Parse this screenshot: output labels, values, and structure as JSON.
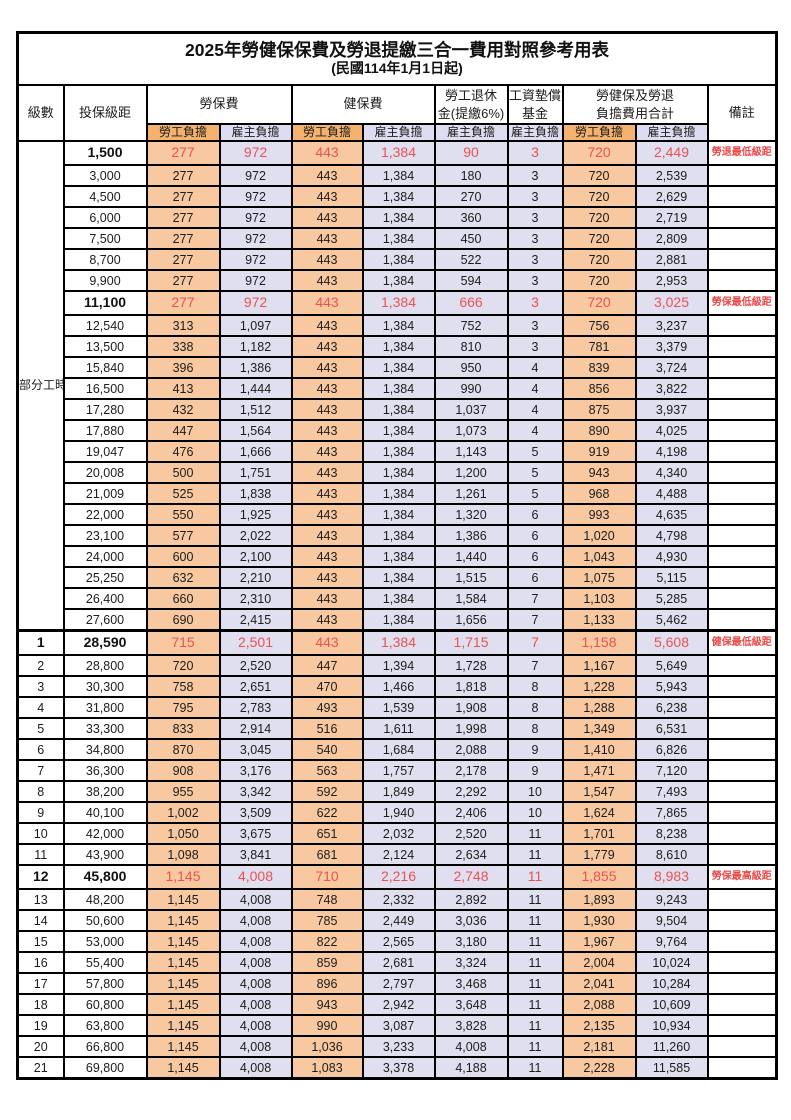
{
  "title": "2025年勞健保保費及勞退提繳三合一費用對照參考用表",
  "subtitle": "(民國114年1月1日起)",
  "header": {
    "level": "級數",
    "bracket": "投保級距",
    "labor_insurance": "勞保費",
    "health_insurance": "健保費",
    "pension_line1": "勞工退休",
    "pension_line2": "金(提繳6%)",
    "wage_fund_line1": "工資墊償",
    "wage_fund_line2": "基金",
    "total_line1": "勞健保及勞退",
    "total_line2": "負擔費用合計",
    "note": "備註",
    "employee_share": "勞工負擔",
    "employer_share": "雇主負擔"
  },
  "part_time": {
    "label": "部分工時",
    "rowspan": 23
  },
  "colors": {
    "employee_bg": "#F8C9A0",
    "employer_bg": "#E0DFF0",
    "subheader_employee_bg": "#F5B26E",
    "subheader_employer_bg": "#DEDCF0",
    "highlight_text": "#EA5252",
    "note_text": "#E84A4A",
    "border": "#000000"
  },
  "rows": [
    {
      "b": "1,500",
      "v": [
        "277",
        "972",
        "443",
        "1,384",
        "90",
        "3",
        "720",
        "2,449"
      ],
      "note": "勞退最低級距",
      "hl": true
    },
    {
      "b": "3,000",
      "v": [
        "277",
        "972",
        "443",
        "1,384",
        "180",
        "3",
        "720",
        "2,539"
      ]
    },
    {
      "b": "4,500",
      "v": [
        "277",
        "972",
        "443",
        "1,384",
        "270",
        "3",
        "720",
        "2,629"
      ]
    },
    {
      "b": "6,000",
      "v": [
        "277",
        "972",
        "443",
        "1,384",
        "360",
        "3",
        "720",
        "2,719"
      ]
    },
    {
      "b": "7,500",
      "v": [
        "277",
        "972",
        "443",
        "1,384",
        "450",
        "3",
        "720",
        "2,809"
      ]
    },
    {
      "b": "8,700",
      "v": [
        "277",
        "972",
        "443",
        "1,384",
        "522",
        "3",
        "720",
        "2,881"
      ]
    },
    {
      "b": "9,900",
      "v": [
        "277",
        "972",
        "443",
        "1,384",
        "594",
        "3",
        "720",
        "2,953"
      ]
    },
    {
      "b": "11,100",
      "v": [
        "277",
        "972",
        "443",
        "1,384",
        "666",
        "3",
        "720",
        "3,025"
      ],
      "note": "勞保最低級距",
      "hl": true
    },
    {
      "b": "12,540",
      "v": [
        "313",
        "1,097",
        "443",
        "1,384",
        "752",
        "3",
        "756",
        "3,237"
      ]
    },
    {
      "b": "13,500",
      "v": [
        "338",
        "1,182",
        "443",
        "1,384",
        "810",
        "3",
        "781",
        "3,379"
      ]
    },
    {
      "b": "15,840",
      "v": [
        "396",
        "1,386",
        "443",
        "1,384",
        "950",
        "4",
        "839",
        "3,724"
      ]
    },
    {
      "b": "16,500",
      "v": [
        "413",
        "1,444",
        "443",
        "1,384",
        "990",
        "4",
        "856",
        "3,822"
      ]
    },
    {
      "b": "17,280",
      "v": [
        "432",
        "1,512",
        "443",
        "1,384",
        "1,037",
        "4",
        "875",
        "3,937"
      ]
    },
    {
      "b": "17,880",
      "v": [
        "447",
        "1,564",
        "443",
        "1,384",
        "1,073",
        "4",
        "890",
        "4,025"
      ]
    },
    {
      "b": "19,047",
      "v": [
        "476",
        "1,666",
        "443",
        "1,384",
        "1,143",
        "5",
        "919",
        "4,198"
      ]
    },
    {
      "b": "20,008",
      "v": [
        "500",
        "1,751",
        "443",
        "1,384",
        "1,200",
        "5",
        "943",
        "4,340"
      ]
    },
    {
      "b": "21,009",
      "v": [
        "525",
        "1,838",
        "443",
        "1,384",
        "1,261",
        "5",
        "968",
        "4,488"
      ]
    },
    {
      "b": "22,000",
      "v": [
        "550",
        "1,925",
        "443",
        "1,384",
        "1,320",
        "6",
        "993",
        "4,635"
      ]
    },
    {
      "b": "23,100",
      "v": [
        "577",
        "2,022",
        "443",
        "1,384",
        "1,386",
        "6",
        "1,020",
        "4,798"
      ]
    },
    {
      "b": "24,000",
      "v": [
        "600",
        "2,100",
        "443",
        "1,384",
        "1,440",
        "6",
        "1,043",
        "4,930"
      ]
    },
    {
      "b": "25,250",
      "v": [
        "632",
        "2,210",
        "443",
        "1,384",
        "1,515",
        "6",
        "1,075",
        "5,115"
      ]
    },
    {
      "b": "26,400",
      "v": [
        "660",
        "2,310",
        "443",
        "1,384",
        "1,584",
        "7",
        "1,103",
        "5,285"
      ]
    },
    {
      "b": "27,600",
      "v": [
        "690",
        "2,415",
        "443",
        "1,384",
        "1,656",
        "7",
        "1,133",
        "5,462"
      ]
    },
    {
      "lv": "1",
      "b": "28,590",
      "v": [
        "715",
        "2,501",
        "443",
        "1,384",
        "1,715",
        "7",
        "1,158",
        "5,608"
      ],
      "note": "健保最低級距",
      "hl": true,
      "sec": true
    },
    {
      "lv": "2",
      "b": "28,800",
      "v": [
        "720",
        "2,520",
        "447",
        "1,394",
        "1,728",
        "7",
        "1,167",
        "5,649"
      ]
    },
    {
      "lv": "3",
      "b": "30,300",
      "v": [
        "758",
        "2,651",
        "470",
        "1,466",
        "1,818",
        "8",
        "1,228",
        "5,943"
      ]
    },
    {
      "lv": "4",
      "b": "31,800",
      "v": [
        "795",
        "2,783",
        "493",
        "1,539",
        "1,908",
        "8",
        "1,288",
        "6,238"
      ]
    },
    {
      "lv": "5",
      "b": "33,300",
      "v": [
        "833",
        "2,914",
        "516",
        "1,611",
        "1,998",
        "8",
        "1,349",
        "6,531"
      ]
    },
    {
      "lv": "6",
      "b": "34,800",
      "v": [
        "870",
        "3,045",
        "540",
        "1,684",
        "2,088",
        "9",
        "1,410",
        "6,826"
      ]
    },
    {
      "lv": "7",
      "b": "36,300",
      "v": [
        "908",
        "3,176",
        "563",
        "1,757",
        "2,178",
        "9",
        "1,471",
        "7,120"
      ]
    },
    {
      "lv": "8",
      "b": "38,200",
      "v": [
        "955",
        "3,342",
        "592",
        "1,849",
        "2,292",
        "10",
        "1,547",
        "7,493"
      ]
    },
    {
      "lv": "9",
      "b": "40,100",
      "v": [
        "1,002",
        "3,509",
        "622",
        "1,940",
        "2,406",
        "10",
        "1,624",
        "7,865"
      ]
    },
    {
      "lv": "10",
      "b": "42,000",
      "v": [
        "1,050",
        "3,675",
        "651",
        "2,032",
        "2,520",
        "11",
        "1,701",
        "8,238"
      ]
    },
    {
      "lv": "11",
      "b": "43,900",
      "v": [
        "1,098",
        "3,841",
        "681",
        "2,124",
        "2,634",
        "11",
        "1,779",
        "8,610"
      ]
    },
    {
      "lv": "12",
      "b": "45,800",
      "v": [
        "1,145",
        "4,008",
        "710",
        "2,216",
        "2,748",
        "11",
        "1,855",
        "8,983"
      ],
      "note": "勞保最高級距",
      "hl": true
    },
    {
      "lv": "13",
      "b": "48,200",
      "v": [
        "1,145",
        "4,008",
        "748",
        "2,332",
        "2,892",
        "11",
        "1,893",
        "9,243"
      ]
    },
    {
      "lv": "14",
      "b": "50,600",
      "v": [
        "1,145",
        "4,008",
        "785",
        "2,449",
        "3,036",
        "11",
        "1,930",
        "9,504"
      ]
    },
    {
      "lv": "15",
      "b": "53,000",
      "v": [
        "1,145",
        "4,008",
        "822",
        "2,565",
        "3,180",
        "11",
        "1,967",
        "9,764"
      ]
    },
    {
      "lv": "16",
      "b": "55,400",
      "v": [
        "1,145",
        "4,008",
        "859",
        "2,681",
        "3,324",
        "11",
        "2,004",
        "10,024"
      ]
    },
    {
      "lv": "17",
      "b": "57,800",
      "v": [
        "1,145",
        "4,008",
        "896",
        "2,797",
        "3,468",
        "11",
        "2,041",
        "10,284"
      ]
    },
    {
      "lv": "18",
      "b": "60,800",
      "v": [
        "1,145",
        "4,008",
        "943",
        "2,942",
        "3,648",
        "11",
        "2,088",
        "10,609"
      ]
    },
    {
      "lv": "19",
      "b": "63,800",
      "v": [
        "1,145",
        "4,008",
        "990",
        "3,087",
        "3,828",
        "11",
        "2,135",
        "10,934"
      ]
    },
    {
      "lv": "20",
      "b": "66,800",
      "v": [
        "1,145",
        "4,008",
        "1,036",
        "3,233",
        "4,008",
        "11",
        "2,181",
        "11,260"
      ]
    },
    {
      "lv": "21",
      "b": "69,800",
      "v": [
        "1,145",
        "4,008",
        "1,083",
        "3,378",
        "4,188",
        "11",
        "2,228",
        "11,585"
      ]
    }
  ]
}
